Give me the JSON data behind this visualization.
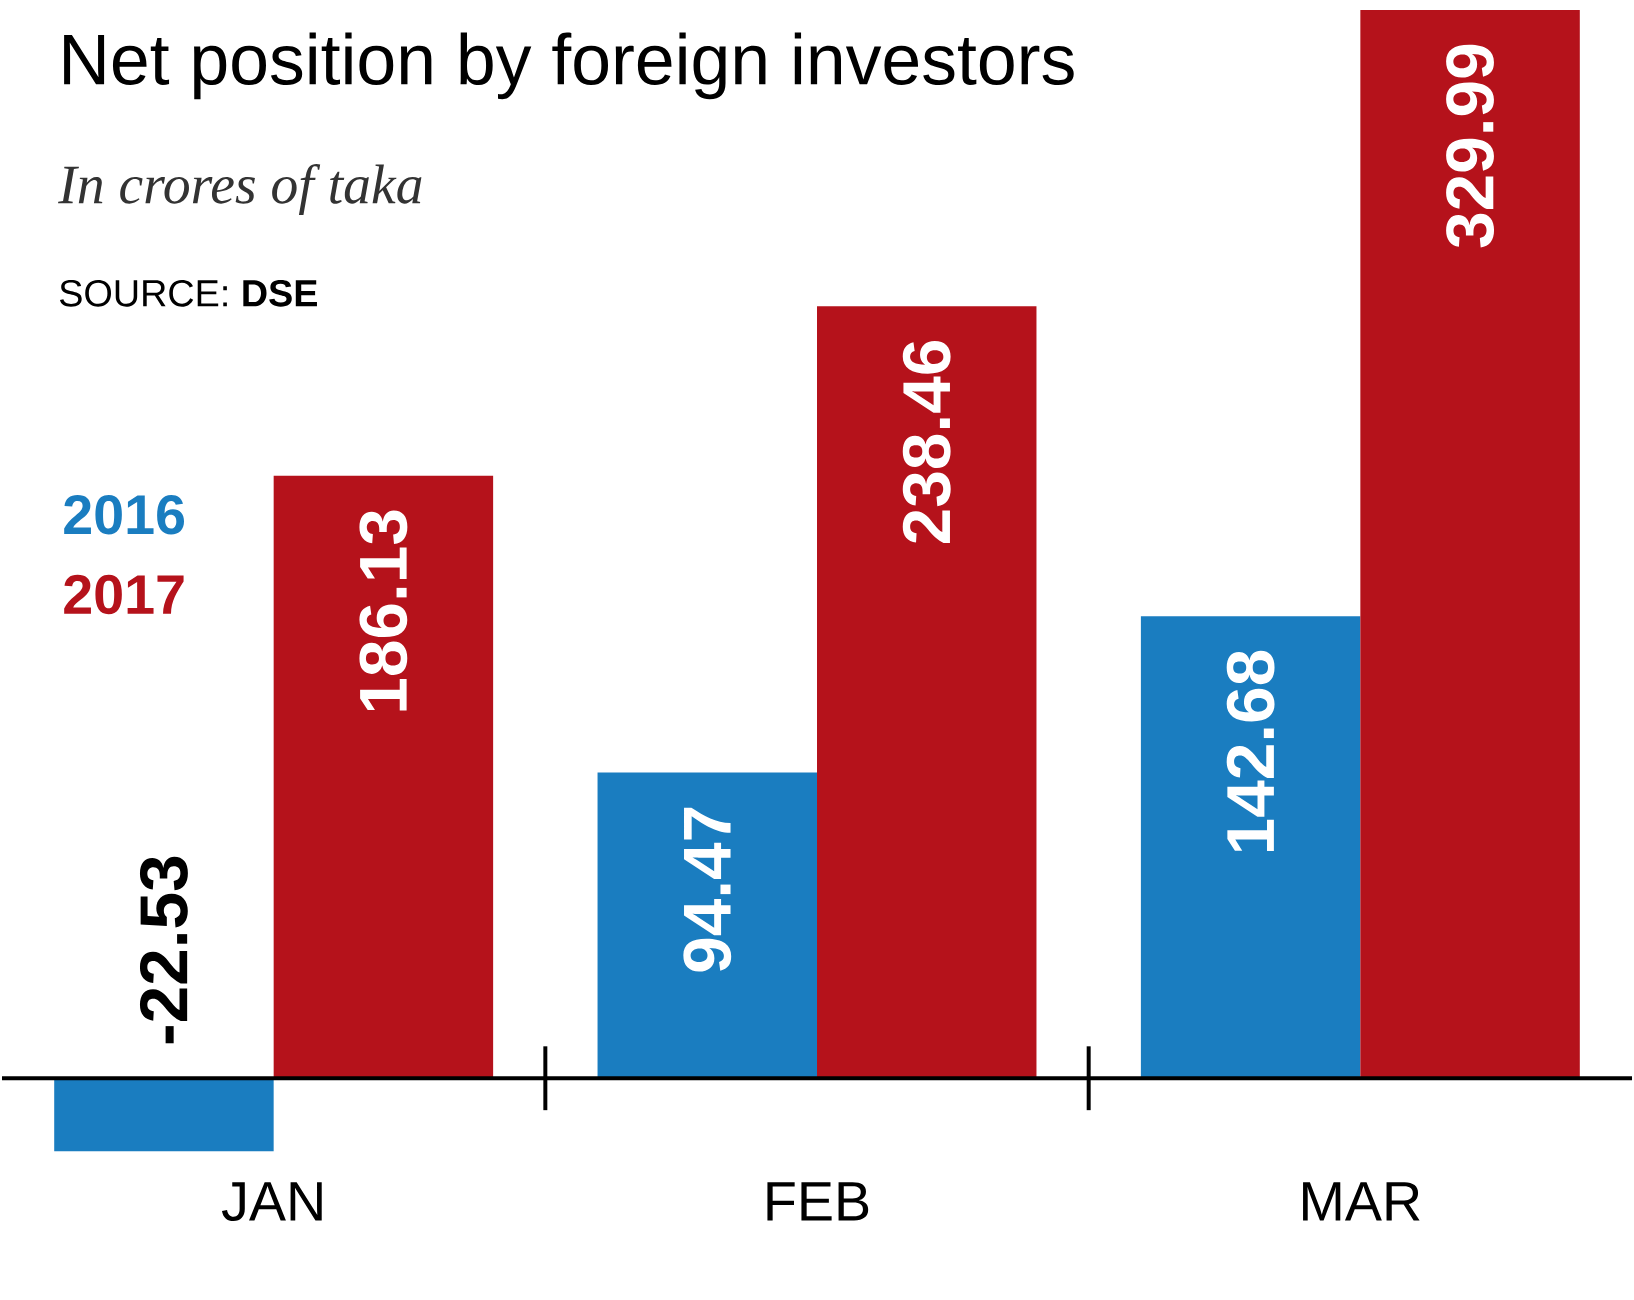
{
  "chart_data": {
    "type": "bar",
    "title": "Net position by foreign investors",
    "subtitle": "*In crores of taka*",
    "annotations": [
      "SOURCE: **DSE**"
    ],
    "categories": [
      "JAN",
      "FEB",
      "MAR"
    ],
    "series": [
      {
        "name": "2016",
        "color": "#1a7dc0",
        "values": [
          -22.53,
          94.47,
          142.68
        ]
      },
      {
        "name": "2017",
        "color": "#b5121b",
        "values": [
          186.13,
          238.46,
          329.99
        ]
      }
    ],
    "data_labels": true,
    "legend": "left"
  }
}
